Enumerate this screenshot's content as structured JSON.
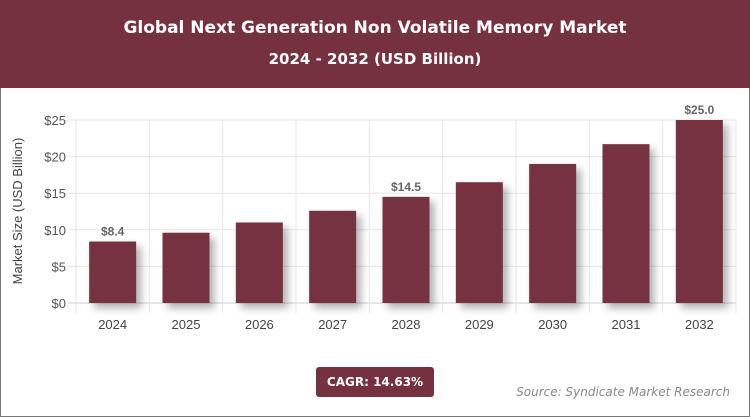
{
  "header": {
    "title": "Global Next Generation Non Volatile Memory Market",
    "subtitle": "2024 - 2032 (USD Billion)"
  },
  "chart_data": {
    "type": "bar",
    "title": "Global Next Generation Non Volatile Memory Market",
    "subtitle": "2024 - 2032 (USD Billion)",
    "ylabel": "Market Size (USD Billion)",
    "xlabel": "",
    "categories": [
      "2024",
      "2025",
      "2026",
      "2027",
      "2028",
      "2029",
      "2030",
      "2031",
      "2032"
    ],
    "values": [
      8.4,
      9.6,
      11.0,
      12.6,
      14.5,
      16.5,
      19.0,
      21.7,
      25.0
    ],
    "data_labels": {
      "0": "$8.4",
      "4": "$14.5",
      "8": "$25.0"
    },
    "ylim": [
      0,
      25
    ],
    "yticks": [
      0,
      5,
      10,
      15,
      20,
      25
    ],
    "ytick_labels": [
      "$0",
      "$5",
      "$10",
      "$15",
      "$20",
      "$25"
    ],
    "grid": true,
    "bar_color": "#76313f"
  },
  "footer": {
    "cagr": "CAGR: 14.63%",
    "source": "Source: Syndicate Market Research"
  }
}
